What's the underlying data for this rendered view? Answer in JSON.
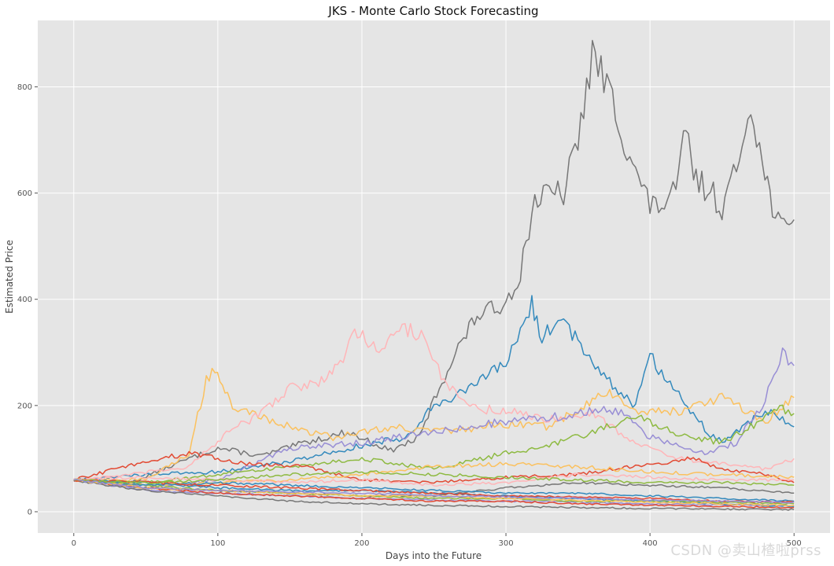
{
  "chart_data": {
    "type": "line",
    "title": "JKS - Monte Carlo Stock Forecasting",
    "xlabel": "Days into the Future",
    "ylabel": "Estimated Price",
    "xlim": [
      -25,
      525
    ],
    "ylim": [
      -40,
      925
    ],
    "xticks": [
      0,
      100,
      200,
      300,
      400,
      500
    ],
    "yticks": [
      0,
      200,
      400,
      600,
      800
    ],
    "grid": true,
    "style": "ggplot",
    "background": "#e5e5e5",
    "series": [
      {
        "color": "#777777",
        "points": [
          [
            0,
            60
          ],
          [
            40,
            55
          ],
          [
            80,
            100
          ],
          [
            100,
            120
          ],
          [
            130,
            105
          ],
          [
            160,
            130
          ],
          [
            190,
            150
          ],
          [
            220,
            115
          ],
          [
            240,
            140
          ],
          [
            250,
            210
          ],
          [
            265,
            300
          ],
          [
            280,
            370
          ],
          [
            290,
            380
          ],
          [
            300,
            395
          ],
          [
            310,
            450
          ],
          [
            320,
            590
          ],
          [
            340,
            600
          ],
          [
            350,
            700
          ],
          [
            360,
            860
          ],
          [
            372,
            790
          ],
          [
            380,
            720
          ],
          [
            390,
            640
          ],
          [
            400,
            575
          ],
          [
            410,
            580
          ],
          [
            418,
            600
          ],
          [
            425,
            720
          ],
          [
            432,
            620
          ],
          [
            440,
            610
          ],
          [
            450,
            575
          ],
          [
            460,
            640
          ],
          [
            470,
            780
          ],
          [
            478,
            650
          ],
          [
            485,
            580
          ],
          [
            495,
            520
          ],
          [
            500,
            550
          ]
        ]
      },
      {
        "color": "#348ABD",
        "points": [
          [
            0,
            60
          ],
          [
            50,
            70
          ],
          [
            100,
            75
          ],
          [
            150,
            95
          ],
          [
            200,
            125
          ],
          [
            230,
            140
          ],
          [
            250,
            200
          ],
          [
            280,
            240
          ],
          [
            300,
            280
          ],
          [
            310,
            340
          ],
          [
            318,
            390
          ],
          [
            325,
            330
          ],
          [
            340,
            360
          ],
          [
            350,
            320
          ],
          [
            370,
            250
          ],
          [
            390,
            200
          ],
          [
            400,
            300
          ],
          [
            410,
            250
          ],
          [
            420,
            220
          ],
          [
            440,
            150
          ],
          [
            450,
            130
          ],
          [
            460,
            150
          ],
          [
            480,
            190
          ],
          [
            500,
            160
          ]
        ]
      },
      {
        "color": "#FBC15E",
        "points": [
          [
            0,
            60
          ],
          [
            50,
            60
          ],
          [
            80,
            110
          ],
          [
            92,
            250
          ],
          [
            98,
            270
          ],
          [
            105,
            230
          ],
          [
            112,
            185
          ],
          [
            120,
            190
          ],
          [
            150,
            160
          ],
          [
            180,
            140
          ],
          [
            220,
            160
          ],
          [
            260,
            150
          ],
          [
            300,
            165
          ],
          [
            330,
            160
          ],
          [
            370,
            225
          ],
          [
            390,
            190
          ],
          [
            420,
            190
          ],
          [
            450,
            215
          ],
          [
            480,
            170
          ],
          [
            500,
            215
          ]
        ]
      },
      {
        "color": "#FFB5B8",
        "points": [
          [
            0,
            60
          ],
          [
            40,
            70
          ],
          [
            80,
            85
          ],
          [
            110,
            155
          ],
          [
            130,
            185
          ],
          [
            150,
            235
          ],
          [
            170,
            240
          ],
          [
            185,
            280
          ],
          [
            195,
            340
          ],
          [
            210,
            310
          ],
          [
            230,
            345
          ],
          [
            245,
            330
          ],
          [
            255,
            250
          ],
          [
            275,
            195
          ],
          [
            300,
            190
          ],
          [
            330,
            175
          ],
          [
            360,
            185
          ],
          [
            390,
            130
          ],
          [
            420,
            100
          ],
          [
            450,
            90
          ],
          [
            480,
            80
          ],
          [
            500,
            100
          ]
        ]
      },
      {
        "color": "#988ED5",
        "points": [
          [
            0,
            60
          ],
          [
            50,
            45
          ],
          [
            100,
            60
          ],
          [
            150,
            120
          ],
          [
            200,
            130
          ],
          [
            250,
            150
          ],
          [
            300,
            170
          ],
          [
            340,
            180
          ],
          [
            360,
            190
          ],
          [
            380,
            190
          ],
          [
            400,
            140
          ],
          [
            440,
            110
          ],
          [
            460,
            130
          ],
          [
            480,
            210
          ],
          [
            492,
            300
          ],
          [
            500,
            275
          ]
        ]
      },
      {
        "color": "#8EBA42",
        "points": [
          [
            0,
            60
          ],
          [
            50,
            55
          ],
          [
            100,
            70
          ],
          [
            150,
            85
          ],
          [
            200,
            100
          ],
          [
            250,
            80
          ],
          [
            300,
            110
          ],
          [
            330,
            125
          ],
          [
            360,
            150
          ],
          [
            390,
            180
          ],
          [
            420,
            145
          ],
          [
            450,
            130
          ],
          [
            470,
            160
          ],
          [
            490,
            195
          ],
          [
            500,
            185
          ]
        ]
      },
      {
        "color": "#E24A33",
        "points": [
          [
            0,
            60
          ],
          [
            50,
            95
          ],
          [
            80,
            110
          ],
          [
            120,
            90
          ],
          [
            160,
            85
          ],
          [
            200,
            60
          ],
          [
            250,
            55
          ],
          [
            300,
            65
          ],
          [
            350,
            70
          ],
          [
            400,
            90
          ],
          [
            430,
            100
          ],
          [
            450,
            80
          ],
          [
            480,
            70
          ],
          [
            500,
            55
          ]
        ]
      },
      {
        "color": "#777777",
        "points": [
          [
            0,
            60
          ],
          [
            50,
            45
          ],
          [
            100,
            40
          ],
          [
            150,
            35
          ],
          [
            200,
            30
          ],
          [
            250,
            30
          ],
          [
            300,
            45
          ],
          [
            350,
            55
          ],
          [
            400,
            50
          ],
          [
            450,
            45
          ],
          [
            500,
            35
          ]
        ]
      },
      {
        "color": "#348ABD",
        "points": [
          [
            0,
            60
          ],
          [
            50,
            55
          ],
          [
            100,
            45
          ],
          [
            150,
            40
          ],
          [
            200,
            40
          ],
          [
            250,
            35
          ],
          [
            300,
            30
          ],
          [
            350,
            25
          ],
          [
            400,
            20
          ],
          [
            450,
            15
          ],
          [
            500,
            10
          ]
        ]
      },
      {
        "color": "#FBC15E",
        "points": [
          [
            0,
            60
          ],
          [
            50,
            50
          ],
          [
            100,
            55
          ],
          [
            150,
            60
          ],
          [
            200,
            70
          ],
          [
            250,
            85
          ],
          [
            300,
            90
          ],
          [
            350,
            85
          ],
          [
            400,
            75
          ],
          [
            450,
            70
          ],
          [
            500,
            65
          ]
        ]
      },
      {
        "color": "#FFB5B8",
        "points": [
          [
            0,
            60
          ],
          [
            50,
            65
          ],
          [
            100,
            60
          ],
          [
            150,
            55
          ],
          [
            200,
            60
          ],
          [
            250,
            50
          ],
          [
            300,
            55
          ],
          [
            350,
            70
          ],
          [
            400,
            65
          ],
          [
            450,
            60
          ],
          [
            500,
            60
          ]
        ]
      },
      {
        "color": "#988ED5",
        "points": [
          [
            0,
            60
          ],
          [
            50,
            40
          ],
          [
            100,
            35
          ],
          [
            150,
            30
          ],
          [
            200,
            25
          ],
          [
            250,
            22
          ],
          [
            300,
            20
          ],
          [
            350,
            18
          ],
          [
            400,
            15
          ],
          [
            450,
            13
          ],
          [
            500,
            12
          ]
        ]
      },
      {
        "color": "#8EBA42",
        "points": [
          [
            0,
            60
          ],
          [
            50,
            50
          ],
          [
            100,
            40
          ],
          [
            150,
            35
          ],
          [
            200,
            30
          ],
          [
            250,
            25
          ],
          [
            300,
            25
          ],
          [
            350,
            20
          ],
          [
            400,
            20
          ],
          [
            450,
            18
          ],
          [
            500,
            15
          ]
        ]
      },
      {
        "color": "#E24A33",
        "points": [
          [
            0,
            60
          ],
          [
            50,
            45
          ],
          [
            100,
            35
          ],
          [
            150,
            30
          ],
          [
            200,
            25
          ],
          [
            250,
            20
          ],
          [
            300,
            20
          ],
          [
            350,
            15
          ],
          [
            400,
            12
          ],
          [
            450,
            10
          ],
          [
            500,
            8
          ]
        ]
      },
      {
        "color": "#777777",
        "points": [
          [
            0,
            60
          ],
          [
            50,
            40
          ],
          [
            100,
            30
          ],
          [
            150,
            20
          ],
          [
            200,
            15
          ],
          [
            250,
            12
          ],
          [
            300,
            10
          ],
          [
            350,
            8
          ],
          [
            400,
            6
          ],
          [
            450,
            5
          ],
          [
            500,
            4
          ]
        ]
      },
      {
        "color": "#348ABD",
        "points": [
          [
            0,
            60
          ],
          [
            50,
            50
          ],
          [
            100,
            55
          ],
          [
            150,
            50
          ],
          [
            200,
            45
          ],
          [
            250,
            40
          ],
          [
            300,
            35
          ],
          [
            350,
            35
          ],
          [
            400,
            30
          ],
          [
            450,
            25
          ],
          [
            500,
            20
          ]
        ]
      },
      {
        "color": "#FBC15E",
        "points": [
          [
            0,
            60
          ],
          [
            50,
            45
          ],
          [
            100,
            40
          ],
          [
            150,
            35
          ],
          [
            200,
            30
          ],
          [
            250,
            30
          ],
          [
            300,
            25
          ],
          [
            350,
            22
          ],
          [
            400,
            18
          ],
          [
            450,
            15
          ],
          [
            500,
            12
          ]
        ]
      },
      {
        "color": "#E24A33",
        "points": [
          [
            0,
            60
          ],
          [
            50,
            55
          ],
          [
            100,
            50
          ],
          [
            150,
            45
          ],
          [
            200,
            40
          ],
          [
            250,
            35
          ],
          [
            300,
            30
          ],
          [
            350,
            28
          ],
          [
            400,
            25
          ],
          [
            450,
            20
          ],
          [
            500,
            18
          ]
        ]
      },
      {
        "color": "#8EBA42",
        "points": [
          [
            0,
            60
          ],
          [
            50,
            55
          ],
          [
            100,
            60
          ],
          [
            150,
            70
          ],
          [
            200,
            75
          ],
          [
            250,
            70
          ],
          [
            300,
            65
          ],
          [
            350,
            60
          ],
          [
            400,
            55
          ],
          [
            450,
            55
          ],
          [
            500,
            50
          ]
        ]
      },
      {
        "color": "#988ED5",
        "points": [
          [
            0,
            60
          ],
          [
            50,
            45
          ],
          [
            100,
            40
          ],
          [
            150,
            38
          ],
          [
            200,
            35
          ],
          [
            250,
            30
          ],
          [
            300,
            28
          ],
          [
            350,
            25
          ],
          [
            400,
            22
          ],
          [
            450,
            20
          ],
          [
            500,
            18
          ]
        ]
      }
    ]
  },
  "watermark": "CSDN @卖山楂啦prss"
}
